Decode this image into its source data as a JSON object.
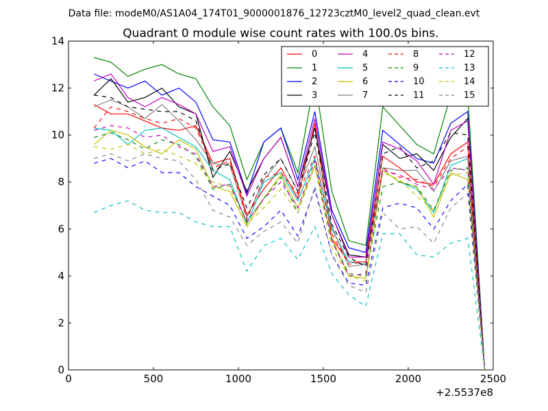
{
  "figure_header": "Data file: modeM0/AS1A04_174T01_9000001876_12723cztM0_level2_quad_clean.evt",
  "chart_data": {
    "type": "line",
    "title": "Quadrant 0 module wise count rates with 100.0s bins.",
    "xlabel": "",
    "ylabel": "",
    "x_offset_label": "+2.5537e8",
    "xlim": [
      0,
      2500
    ],
    "ylim": [
      0,
      14
    ],
    "xticks": [
      "0",
      "500",
      "1000",
      "1500",
      "2000",
      "2500"
    ],
    "yticks": [
      "0",
      "2",
      "4",
      "6",
      "8",
      "10",
      "12",
      "14"
    ],
    "grid": false,
    "legend_position": "top-right",
    "legend_columns": 4,
    "x": [
      150,
      250,
      350,
      450,
      550,
      650,
      750,
      850,
      950,
      1050,
      1150,
      1250,
      1350,
      1450,
      1550,
      1650,
      1750,
      1850,
      1950,
      2050,
      2150,
      2250,
      2350,
      2450
    ],
    "series": [
      {
        "name": "0",
        "color": "#ff0000",
        "dash": "solid",
        "values": [
          11.3,
          10.9,
          10.9,
          10.6,
          10.3,
          10.2,
          10.4,
          8.8,
          9.0,
          6.6,
          7.7,
          8.6,
          7.3,
          10.5,
          5.6,
          4.6,
          4.6,
          9.1,
          8.6,
          8.0,
          7.9,
          9.2,
          9.7,
          0.0
        ]
      },
      {
        "name": "1",
        "color": "#008000",
        "dash": "solid",
        "values": [
          13.3,
          13.1,
          12.5,
          12.8,
          13.0,
          12.6,
          12.4,
          11.2,
          10.4,
          8.1,
          9.7,
          10.3,
          8.4,
          12.4,
          7.6,
          5.5,
          5.3,
          11.2,
          10.4,
          9.6,
          9.2,
          11.7,
          11.7,
          0.0
        ]
      },
      {
        "name": "2",
        "color": "#0000ff",
        "dash": "solid",
        "values": [
          12.6,
          12.3,
          12.0,
          12.3,
          11.7,
          12.0,
          11.4,
          9.8,
          9.7,
          7.5,
          9.7,
          10.3,
          8.1,
          11.0,
          6.8,
          5.2,
          5.0,
          10.2,
          9.6,
          9.0,
          8.8,
          10.5,
          11.0,
          0.0
        ]
      },
      {
        "name": "3",
        "color": "#000000",
        "dash": "solid",
        "values": [
          11.7,
          12.4,
          11.4,
          11.6,
          12.0,
          11.2,
          10.9,
          8.2,
          9.3,
          7.6,
          9.0,
          9.9,
          7.8,
          10.3,
          6.6,
          4.9,
          4.8,
          9.6,
          9.0,
          9.2,
          8.5,
          9.9,
          10.7,
          0.0
        ]
      },
      {
        "name": "4",
        "color": "#bf00bf",
        "dash": "solid",
        "values": [
          12.3,
          12.6,
          11.6,
          11.2,
          11.6,
          11.3,
          10.9,
          9.3,
          9.5,
          7.4,
          9.0,
          9.9,
          7.8,
          10.7,
          6.6,
          4.8,
          4.8,
          9.7,
          9.4,
          8.9,
          7.9,
          10.2,
          10.6,
          0.0
        ]
      },
      {
        "name": "5",
        "color": "#00bfbf",
        "dash": "solid",
        "values": [
          10.3,
          10.2,
          9.6,
          10.2,
          10.3,
          9.9,
          9.5,
          8.5,
          8.1,
          6.2,
          8.0,
          8.4,
          7.2,
          9.0,
          6.0,
          4.6,
          4.5,
          8.5,
          8.0,
          7.7,
          6.7,
          8.7,
          9.0,
          0.0
        ]
      },
      {
        "name": "6",
        "color": "#bfbf00",
        "dash": "solid",
        "values": [
          9.6,
          10.2,
          10.0,
          9.5,
          9.2,
          9.8,
          9.4,
          7.8,
          7.6,
          6.1,
          7.3,
          8.3,
          6.9,
          8.7,
          5.6,
          4.0,
          3.9,
          8.5,
          8.0,
          7.8,
          6.5,
          8.4,
          8.1,
          0.0
        ]
      },
      {
        "name": "7",
        "color": "#808080",
        "dash": "solid",
        "values": [
          11.2,
          11.5,
          11.2,
          10.7,
          11.3,
          10.6,
          9.8,
          8.8,
          8.7,
          6.5,
          8.1,
          9.0,
          7.6,
          9.5,
          6.1,
          4.4,
          4.5,
          8.6,
          8.5,
          8.5,
          7.6,
          8.9,
          9.1,
          0.0
        ]
      },
      {
        "name": "8",
        "color": "#ff0000",
        "dash": "dashed",
        "values": [
          10.3,
          11.2,
          11.0,
          10.7,
          10.5,
          10.7,
          10.3,
          8.6,
          8.9,
          6.4,
          8.2,
          8.4,
          7.5,
          9.1,
          5.8,
          4.5,
          4.6,
          8.6,
          8.2,
          8.1,
          7.8,
          9.0,
          9.5,
          0.0
        ]
      },
      {
        "name": "9",
        "color": "#008000",
        "dash": "dashed",
        "values": [
          9.9,
          10.1,
          9.8,
          9.4,
          9.8,
          9.6,
          9.1,
          7.7,
          7.9,
          6.3,
          7.3,
          8.2,
          6.7,
          8.7,
          5.5,
          4.1,
          4.0,
          7.8,
          8.0,
          7.8,
          6.8,
          8.5,
          8.6,
          0.0
        ]
      },
      {
        "name": "10",
        "color": "#0000ff",
        "dash": "dashed",
        "values": [
          8.8,
          9.0,
          8.6,
          8.9,
          8.4,
          8.4,
          7.8,
          7.4,
          7.0,
          5.6,
          6.1,
          6.8,
          5.7,
          7.7,
          4.9,
          3.7,
          3.6,
          6.9,
          7.1,
          6.9,
          6.0,
          7.2,
          7.9,
          0.0
        ]
      },
      {
        "name": "11",
        "color": "#000000",
        "dash": "dashed",
        "values": [
          11.7,
          11.6,
          11.2,
          11.1,
          11.0,
          11.0,
          10.6,
          8.5,
          8.8,
          6.9,
          8.3,
          9.0,
          7.6,
          10.1,
          6.2,
          4.8,
          4.4,
          9.2,
          9.5,
          8.6,
          8.9,
          10.1,
          10.0,
          0.0
        ]
      },
      {
        "name": "12",
        "color": "#bf00bf",
        "dash": "dashed",
        "values": [
          10.2,
          10.4,
          10.3,
          9.9,
          10.0,
          9.5,
          9.2,
          7.8,
          7.9,
          6.3,
          7.3,
          8.0,
          6.9,
          8.9,
          5.5,
          4.0,
          4.1,
          8.5,
          8.3,
          7.9,
          7.7,
          8.6,
          8.5,
          0.0
        ]
      },
      {
        "name": "13",
        "color": "#00bfbf",
        "dash": "dashed",
        "values": [
          6.7,
          7.0,
          7.2,
          6.8,
          6.7,
          6.7,
          6.3,
          6.1,
          6.1,
          4.2,
          5.3,
          5.6,
          4.7,
          6.1,
          4.1,
          3.2,
          2.7,
          5.8,
          5.8,
          4.9,
          4.8,
          5.4,
          5.6,
          0.0
        ]
      },
      {
        "name": "14",
        "color": "#bfbf00",
        "dash": "dashed",
        "values": [
          9.5,
          9.4,
          9.6,
          9.2,
          9.4,
          9.1,
          8.8,
          8.0,
          7.8,
          6.2,
          6.9,
          7.7,
          6.7,
          8.7,
          5.2,
          4.0,
          3.8,
          8.4,
          8.1,
          7.4,
          6.8,
          8.3,
          8.4,
          0.0
        ]
      },
      {
        "name": "15",
        "color": "#808080",
        "dash": "dashed",
        "values": [
          9.0,
          9.2,
          8.9,
          9.2,
          9.0,
          8.9,
          8.1,
          6.8,
          6.5,
          5.3,
          5.9,
          6.3,
          5.4,
          7.8,
          4.9,
          3.6,
          3.3,
          6.7,
          6.0,
          6.1,
          5.4,
          6.9,
          7.5,
          0.0
        ]
      }
    ]
  }
}
